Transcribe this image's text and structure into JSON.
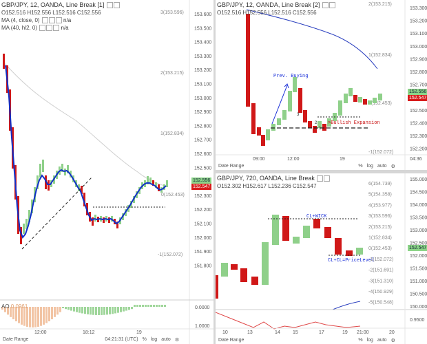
{
  "left": {
    "title": "GBP/JPY, 12, OANDA, Line Break [1]",
    "ohlc": "O152.516  H152.556  L152.516  C152.556",
    "ind1": "MA (4, close, 0)",
    "ind1_value": "n/a",
    "ind2": "MA (40, hl2, 0)",
    "ind2_value": "n/a",
    "price_ticks": [
      "153.600",
      "153.500",
      "153.400",
      "153.300",
      "153.200",
      "153.100",
      "153.000",
      "152.900",
      "152.800",
      "152.700",
      "152.600",
      "152.500",
      "152.400",
      "152.300",
      "152.200",
      "152.100",
      "152.000",
      "151.900",
      "151.800"
    ],
    "fib_labels": [
      "3(153.596)",
      "2(153.215)",
      "1(152.834)",
      "0(152.453)",
      "-1(152.072)"
    ],
    "price_badge_1": "152.556",
    "price_badge_2": "152.547",
    "ao_label": "AO",
    "ao_value": "0.0961",
    "ao_ticks": [
      "0.0000",
      "1.0000"
    ],
    "time_ticks": [
      "12:00",
      "18:12",
      "19"
    ],
    "date_range": "Date Range",
    "clock": "04:21:31 (UTC)",
    "pct": "%",
    "log": "log",
    "auto": "auto"
  },
  "top_right": {
    "title": "GBP/JPY, 12, OANDA, Line Break [2]",
    "ohlc": "O152.516  H152.556  L152.516  C152.556",
    "price_ticks": [
      "153.300",
      "153.200",
      "153.100",
      "153.000",
      "152.900",
      "152.800",
      "152.700",
      "152.600",
      "152.500",
      "152.400",
      "152.300",
      "152.200"
    ],
    "fib_labels": [
      "2(153.215)",
      "1(152.834)",
      "0(152.453)",
      "-1(152.072)"
    ],
    "price_badge_1": "152.556",
    "price_badge_2": "152.547",
    "annotation_prev": "Prev. Buying",
    "annotation_bull": ">Bullish Expansion",
    "label_3": "3",
    "label_2": "2",
    "label_1": "1",
    "time_ticks": [
      "09:00",
      "12:00",
      "19",
      "04:36"
    ],
    "date_range": "Date Range",
    "pct": "%",
    "log": "log",
    "auto": "auto"
  },
  "bottom_right": {
    "title": "GBP/JPY, 720, OANDA, Line Break",
    "ohlc": "O152.302  H152.617  L152.236  C152.547",
    "price_ticks": [
      "155.000",
      "154.500",
      "154.000",
      "153.500",
      "153.000",
      "152.500",
      "152.000",
      "151.500",
      "151.000",
      "150.500",
      "150.000"
    ],
    "fib_labels": [
      "6(154.739)",
      "5(154.358)",
      "4(153.977)",
      "3(153.596)",
      "2(153.215)",
      "1(152.834)",
      "0(152.453)",
      "-1(152.072)",
      "-2(151.691)",
      "-3(151.310)",
      "-4(150.929)",
      "-5(150.548)"
    ],
    "price_badge": "152.547",
    "annotation_wick": "CL+WICK",
    "annotation_price": "CL+CL=PriceLevel",
    "sub_tick": "0.9500",
    "time_ticks": [
      "10",
      "13",
      "14",
      "15",
      "17",
      "19",
      "21:00",
      "20"
    ],
    "date_range": "Date Range",
    "pct": "%",
    "log": "log",
    "auto": "auto"
  },
  "colors": {
    "bull": "#8fd08a",
    "bear": "#d01818",
    "ma_fast": "#1030c8",
    "ma_slow": "#c8c8c8",
    "ma_long": "#2a3fbf",
    "ao_pos": "#9fd69a",
    "ao_neg": "#f2c4a4",
    "annot_blue": "#1a2fd8",
    "annot_red": "#c81010",
    "badge_green": "#8cd488",
    "badge_red": "#d81b1b",
    "osc_red": "#e04848"
  }
}
